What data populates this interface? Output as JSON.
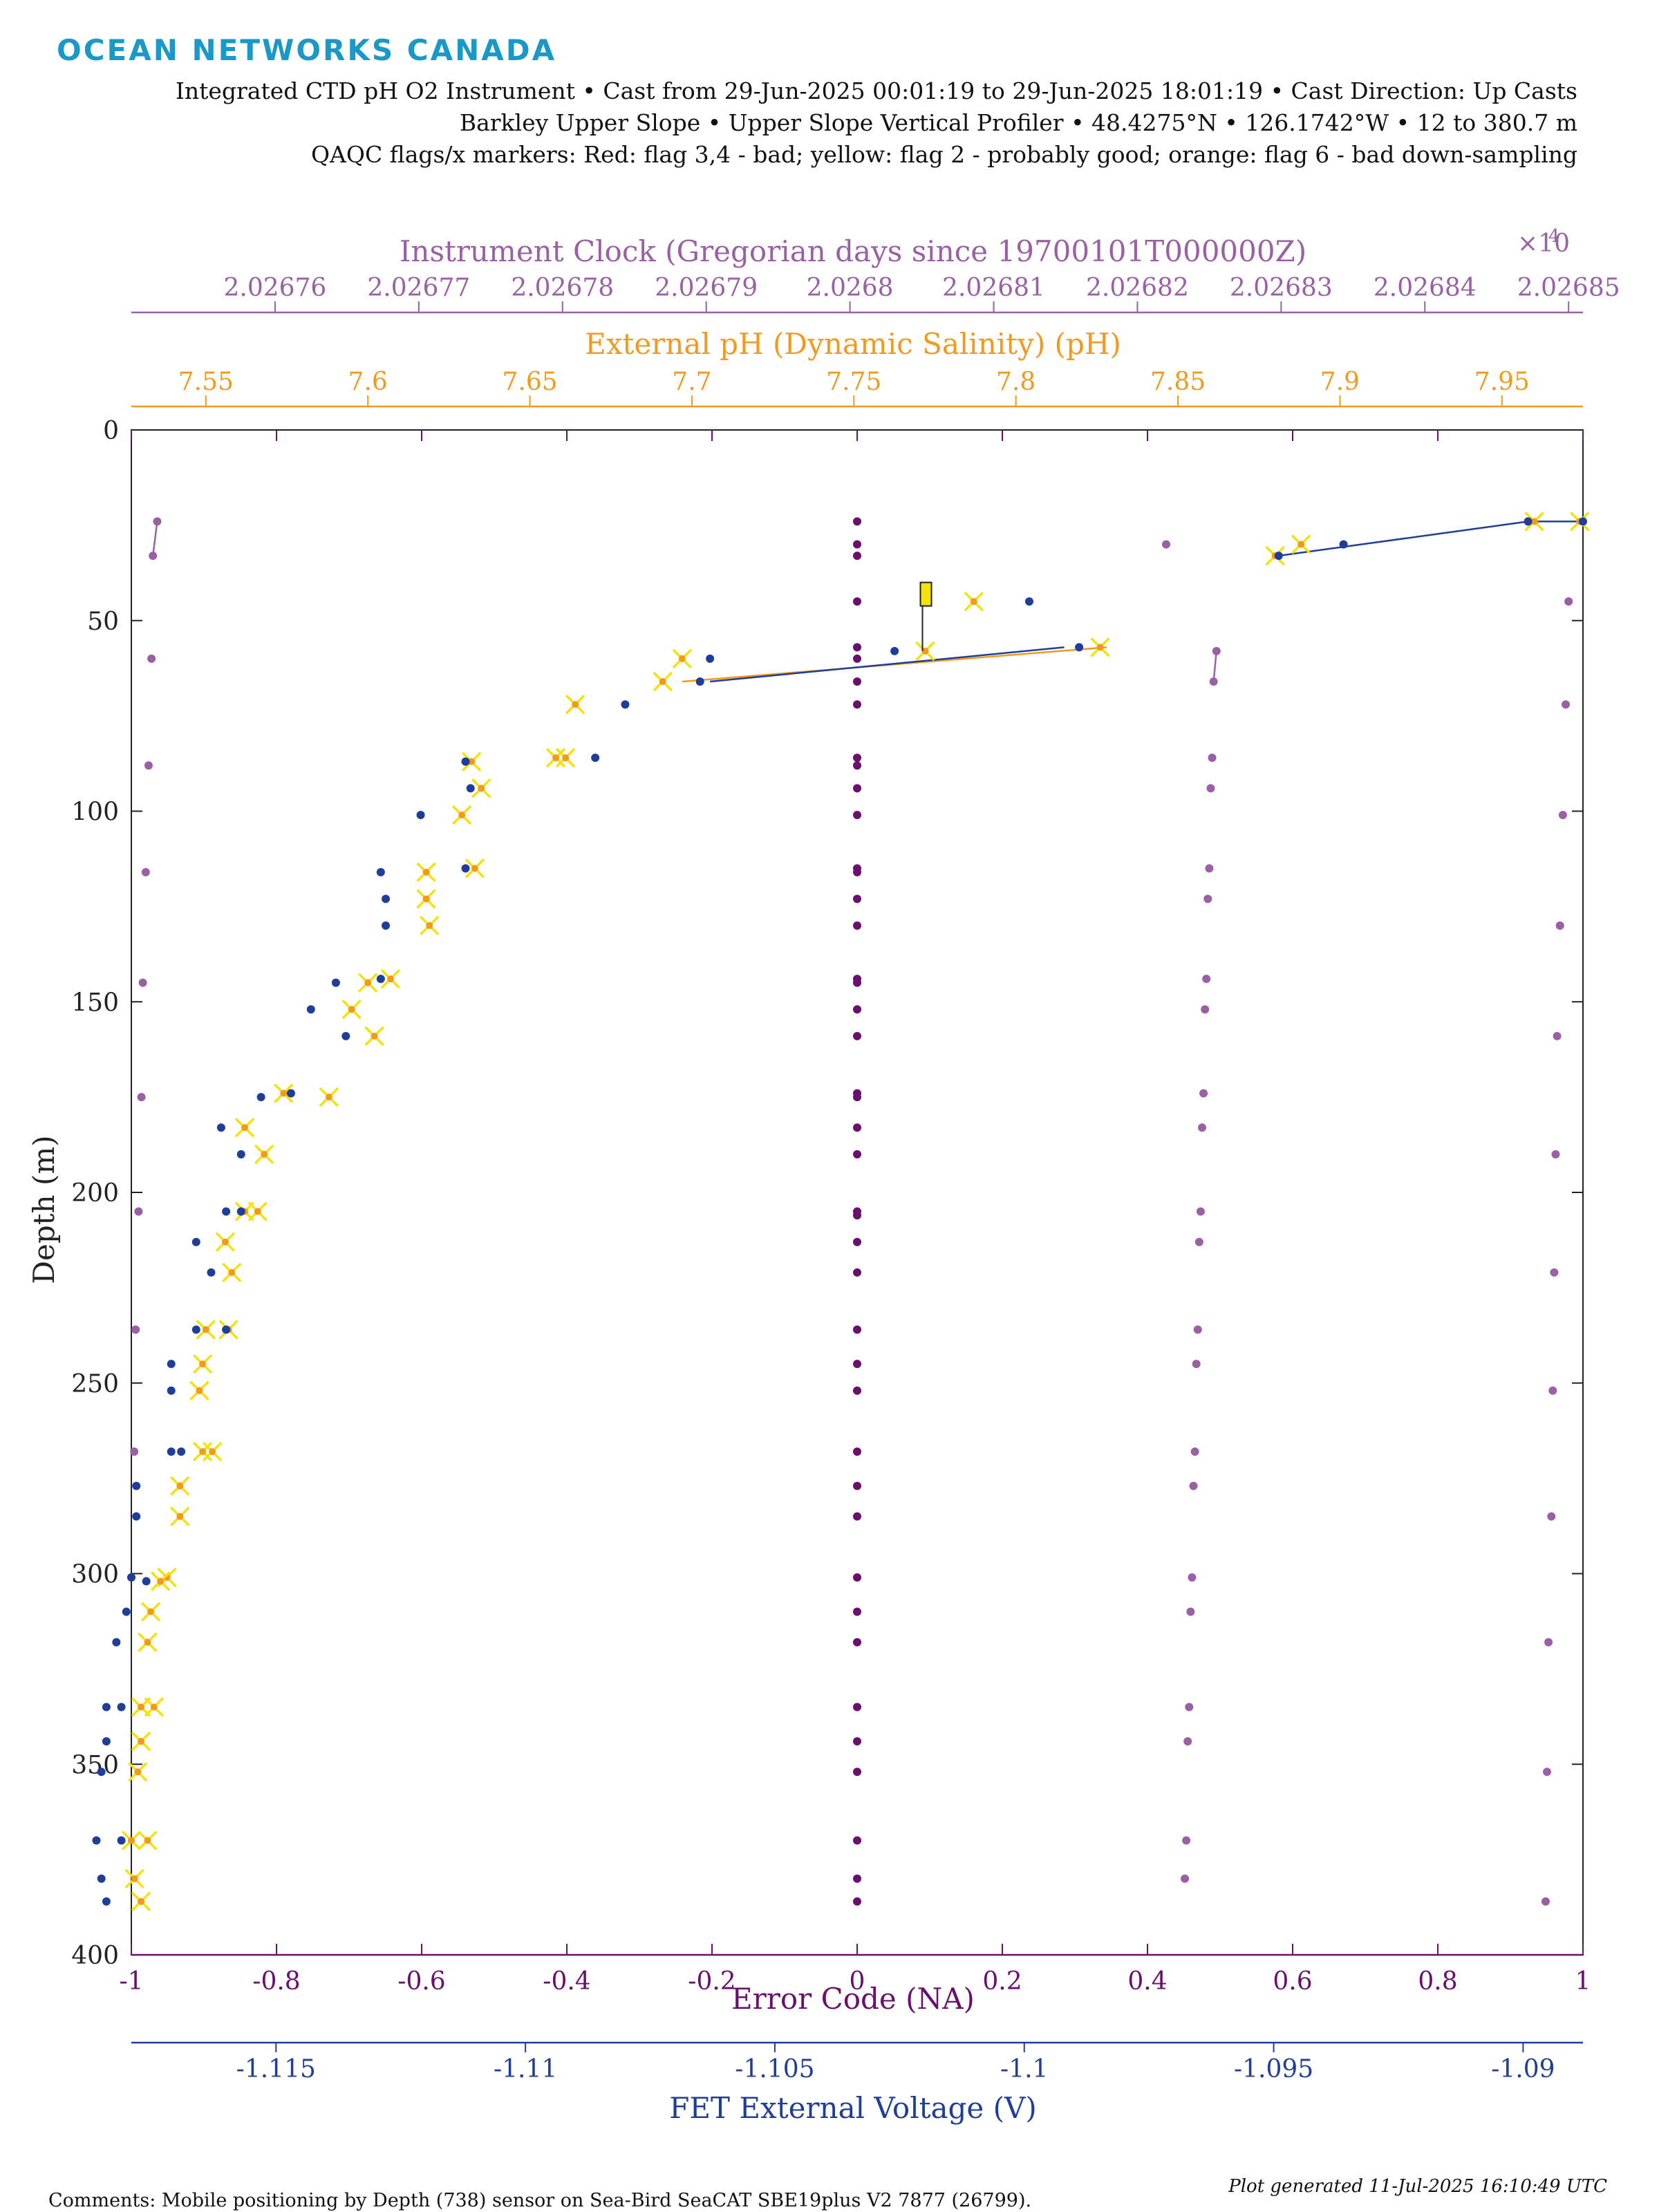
{
  "logo": "OCEAN NETWORKS CANADA",
  "header": {
    "line1": "Integrated CTD pH O2 Instrument • Cast from 29-Jun-2025 00:01:19 to 29-Jun-2025 18:01:19 • Cast Direction: Up Casts",
    "line2": "Barkley Upper Slope • Upper Slope Vertical Profiler • 48.4275°N • 126.1742°W • 12 to 380.7 m",
    "line3": "QAQC flags/x markers: Red: flag 3,4 - bad; yellow: flag 2 - probably good; orange: flag 6 - bad down-sampling"
  },
  "footer": {
    "comments": "Comments: Mobile positioning by Depth (738) sensor on Sea-Bird SeaCAT SBE19plus V2 7877 (26799).",
    "generated": "Plot generated 11-Jul-2025 16:10:49 UTC"
  },
  "colors": {
    "clock": "#9b5fa6",
    "ph": "#f39a1e",
    "error": "#6a0f6e",
    "fet": "#1f3e9a",
    "flag_yellow": "#f5e20a",
    "axis": "#222222"
  },
  "chart_data": {
    "type": "scatter",
    "ylabel": "Depth (m)",
    "yticks": [
      "0",
      "50",
      "100",
      "150",
      "200",
      "250",
      "300",
      "350",
      "400"
    ],
    "ylim": [
      400,
      0
    ],
    "y_reversed": true,
    "axes": {
      "clock": {
        "label": "Instrument Clock (Gregorian days since 19700101T000000Z)",
        "multiplier": "×10",
        "multiplier_exp": "4",
        "ticks": [
          "2.02676",
          "2.02677",
          "2.02678",
          "2.02679",
          "2.0268",
          "2.02681",
          "2.02682",
          "2.02683",
          "2.02684",
          "2.02685"
        ],
        "xlim": [
          2.02675,
          2.026851
        ]
      },
      "ph": {
        "label": "External pH (Dynamic Salinity) (pH)",
        "ticks": [
          "7.55",
          "7.6",
          "7.65",
          "7.7",
          "7.75",
          "7.8",
          "7.85",
          "7.9",
          "7.95"
        ],
        "xlim": [
          7.527,
          7.975
        ]
      },
      "error": {
        "label": "Error Code (NA)",
        "ticks": [
          "-1",
          "-0.8",
          "-0.6",
          "-0.4",
          "-0.2",
          "0",
          "0.2",
          "0.4",
          "0.6",
          "0.8",
          "1"
        ],
        "xlim": [
          -1,
          1
        ]
      },
      "fet": {
        "label": "FET External Voltage (V)",
        "ticks": [
          "-1.115",
          "-1.11",
          "-1.105",
          "-1.1",
          "-1.095",
          "-1.09"
        ],
        "xlim": [
          -1.1179,
          -1.0888
        ]
      }
    },
    "series": [
      {
        "key": "clock",
        "points": [
          [
            2.0267518,
            24
          ],
          [
            2.0267515,
            33
          ],
          [
            2.0267514,
            60
          ],
          [
            2.0267512,
            88
          ],
          [
            2.026751,
            116
          ],
          [
            2.0267508,
            145
          ],
          [
            2.0267507,
            175
          ],
          [
            2.0267505,
            205
          ],
          [
            2.0267503,
            236
          ],
          [
            2.0267502,
            268
          ],
          [
            2.02675,
            301
          ],
          [
            2.026822,
            30
          ],
          [
            2.0268255,
            58
          ],
          [
            2.0268253,
            66
          ],
          [
            2.0268252,
            86
          ],
          [
            2.0268251,
            94
          ],
          [
            2.026825,
            115
          ],
          [
            2.0268249,
            123
          ],
          [
            2.0268248,
            144
          ],
          [
            2.0268247,
            152
          ],
          [
            2.0268246,
            174
          ],
          [
            2.0268245,
            183
          ],
          [
            2.0268244,
            205
          ],
          [
            2.0268243,
            213
          ],
          [
            2.0268242,
            236
          ],
          [
            2.0268241,
            245
          ],
          [
            2.026824,
            268
          ],
          [
            2.0268239,
            277
          ],
          [
            2.0268238,
            301
          ],
          [
            2.0268237,
            310
          ],
          [
            2.0268236,
            335
          ],
          [
            2.0268235,
            344
          ],
          [
            2.0268234,
            370
          ],
          [
            2.0268233,
            380
          ],
          [
            2.02685,
            45
          ],
          [
            2.0268498,
            72
          ],
          [
            2.0268496,
            101
          ],
          [
            2.0268494,
            130
          ],
          [
            2.0268492,
            159
          ],
          [
            2.0268491,
            190
          ],
          [
            2.026849,
            221
          ],
          [
            2.0268489,
            252
          ],
          [
            2.0268488,
            285
          ],
          [
            2.0268486,
            318
          ],
          [
            2.0268485,
            352
          ],
          [
            2.0268484,
            386
          ]
        ],
        "lines": [
          [
            [
              2.0267518,
              24
            ],
            [
              2.0267515,
              33
            ]
          ],
          [
            [
              2.0268255,
              58
            ],
            [
              2.0268253,
              66
            ]
          ]
        ]
      },
      {
        "key": "ph",
        "points": [
          [
            7.96,
            24
          ],
          [
            7.974,
            24
          ],
          [
            7.888,
            30
          ],
          [
            7.88,
            33
          ],
          [
            7.826,
            57
          ],
          [
            7.787,
            45
          ],
          [
            7.772,
            58
          ],
          [
            7.691,
            66
          ],
          [
            7.697,
            60
          ],
          [
            7.664,
            72
          ],
          [
            7.658,
            86
          ],
          [
            7.661,
            86
          ],
          [
            7.632,
            87
          ],
          [
            7.635,
            94
          ],
          [
            7.629,
            101
          ],
          [
            7.633,
            115
          ],
          [
            7.618,
            116
          ],
          [
            7.619,
            130
          ],
          [
            7.618,
            123
          ],
          [
            7.607,
            144
          ],
          [
            7.6,
            145
          ],
          [
            7.595,
            152
          ],
          [
            7.602,
            159
          ],
          [
            7.588,
            175
          ],
          [
            7.574,
            174
          ],
          [
            7.562,
            183
          ],
          [
            7.568,
            190
          ],
          [
            7.566,
            205
          ],
          [
            7.562,
            205
          ],
          [
            7.556,
            213
          ],
          [
            7.558,
            221
          ],
          [
            7.55,
            236
          ],
          [
            7.557,
            236
          ],
          [
            7.549,
            245
          ],
          [
            7.548,
            252
          ],
          [
            7.552,
            268
          ],
          [
            7.549,
            268
          ],
          [
            7.542,
            277
          ],
          [
            7.542,
            285
          ],
          [
            7.538,
            301
          ],
          [
            7.536,
            302
          ],
          [
            7.533,
            310
          ],
          [
            7.532,
            318
          ],
          [
            7.53,
            335
          ],
          [
            7.534,
            335
          ],
          [
            7.53,
            344
          ],
          [
            7.529,
            352
          ],
          [
            7.527,
            370
          ],
          [
            7.532,
            370
          ],
          [
            7.528,
            380
          ],
          [
            7.53,
            386
          ]
        ],
        "lines": [
          [
            [
              7.828,
              57
            ],
            [
              7.697,
              66
            ]
          ]
        ],
        "flagged": true
      },
      {
        "key": "error",
        "points": [
          [
            0,
            24
          ],
          [
            0,
            30
          ],
          [
            0,
            33
          ],
          [
            0,
            45
          ],
          [
            0,
            57
          ],
          [
            0,
            60
          ],
          [
            0,
            66
          ],
          [
            0,
            72
          ],
          [
            0,
            86
          ],
          [
            0,
            88
          ],
          [
            0,
            94
          ],
          [
            0,
            101
          ],
          [
            0,
            115
          ],
          [
            0,
            116
          ],
          [
            0,
            123
          ],
          [
            0,
            130
          ],
          [
            0,
            144
          ],
          [
            0,
            145
          ],
          [
            0,
            152
          ],
          [
            0,
            159
          ],
          [
            0,
            174
          ],
          [
            0,
            175
          ],
          [
            0,
            183
          ],
          [
            0,
            190
          ],
          [
            0,
            205
          ],
          [
            0,
            206
          ],
          [
            0,
            213
          ],
          [
            0,
            221
          ],
          [
            0,
            236
          ],
          [
            0,
            245
          ],
          [
            0,
            252
          ],
          [
            0,
            268
          ],
          [
            0,
            277
          ],
          [
            0,
            285
          ],
          [
            0,
            301
          ],
          [
            0,
            310
          ],
          [
            0,
            318
          ],
          [
            0,
            335
          ],
          [
            0,
            344
          ],
          [
            0,
            352
          ],
          [
            0,
            370
          ],
          [
            0,
            380
          ],
          [
            0,
            386
          ]
        ]
      },
      {
        "key": "fet",
        "points": [
          [
            -1.0899,
            24
          ],
          [
            -1.0888,
            24
          ],
          [
            -1.0936,
            30
          ],
          [
            -1.0949,
            33
          ],
          [
            -1.0989,
            57
          ],
          [
            -1.0999,
            45
          ],
          [
            -1.1026,
            58
          ],
          [
            -1.1065,
            66
          ],
          [
            -1.1063,
            60
          ],
          [
            -1.108,
            72
          ],
          [
            -1.1086,
            86
          ],
          [
            -1.1112,
            87
          ],
          [
            -1.1111,
            94
          ],
          [
            -1.1121,
            101
          ],
          [
            -1.1112,
            115
          ],
          [
            -1.1129,
            116
          ],
          [
            -1.1128,
            123
          ],
          [
            -1.1128,
            130
          ],
          [
            -1.1129,
            144
          ],
          [
            -1.1138,
            145
          ],
          [
            -1.1143,
            152
          ],
          [
            -1.1136,
            159
          ],
          [
            -1.1153,
            175
          ],
          [
            -1.1147,
            174
          ],
          [
            -1.1161,
            183
          ],
          [
            -1.1157,
            190
          ],
          [
            -1.116,
            205
          ],
          [
            -1.1157,
            205
          ],
          [
            -1.1166,
            213
          ],
          [
            -1.1163,
            221
          ],
          [
            -1.1166,
            236
          ],
          [
            -1.116,
            236
          ],
          [
            -1.1171,
            245
          ],
          [
            -1.1171,
            252
          ],
          [
            -1.1169,
            268
          ],
          [
            -1.1171,
            268
          ],
          [
            -1.1178,
            277
          ],
          [
            -1.1178,
            285
          ],
          [
            -1.1179,
            301
          ],
          [
            -1.1176,
            302
          ],
          [
            -1.118,
            310
          ],
          [
            -1.1182,
            318
          ],
          [
            -1.1184,
            335
          ],
          [
            -1.1181,
            335
          ],
          [
            -1.1184,
            344
          ],
          [
            -1.1185,
            352
          ],
          [
            -1.1186,
            370
          ],
          [
            -1.1181,
            370
          ],
          [
            -1.1185,
            380
          ],
          [
            -1.1184,
            386
          ]
        ],
        "lines": [
          [
            [
              -1.0888,
              24
            ],
            [
              -1.0899,
              24
            ],
            [
              -1.0949,
              33
            ]
          ],
          [
            [
              -1.0992,
              57
            ],
            [
              -1.1063,
              66
            ]
          ]
        ]
      }
    ],
    "flag_marker": {
      "error": 0.09,
      "depth_top": 40,
      "depth_bottom": 58
    }
  }
}
